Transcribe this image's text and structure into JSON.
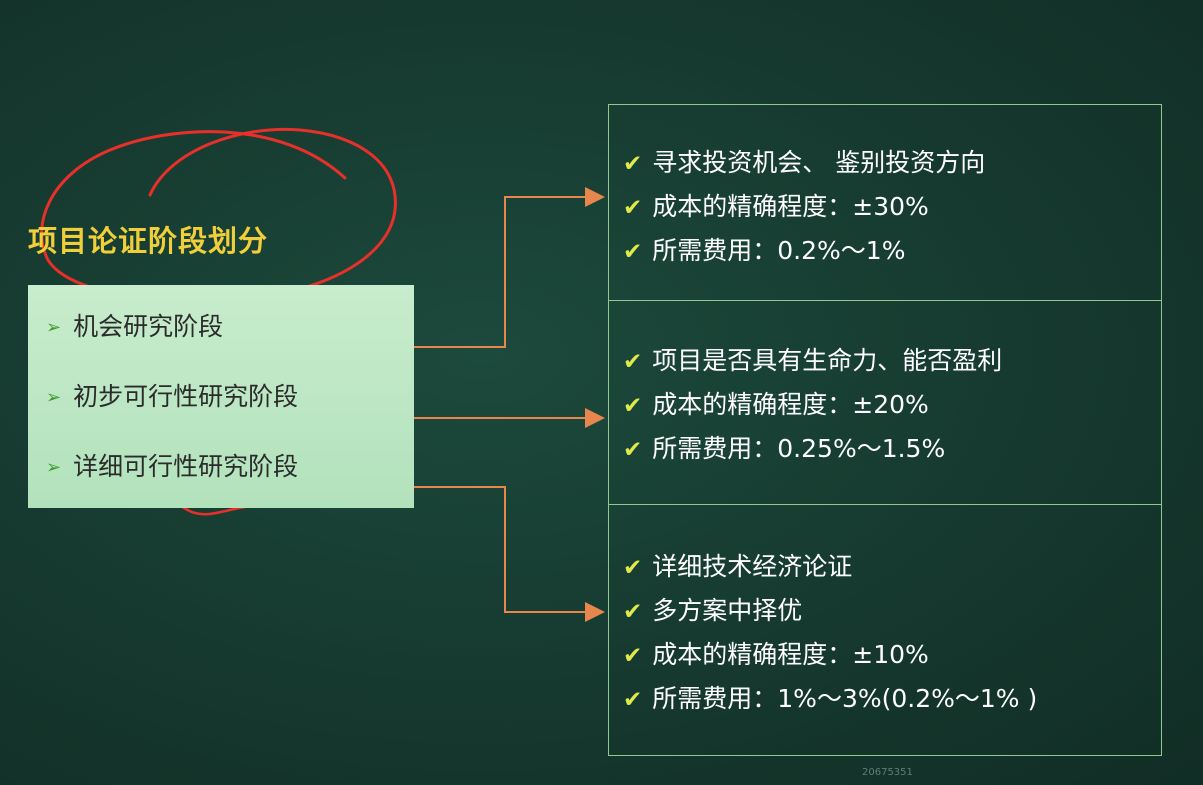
{
  "title": "项目论证阶段划分",
  "stages": [
    {
      "label": "机会研究阶段"
    },
    {
      "label": "初步可行性研究阶段"
    },
    {
      "label": "详细可行性研究阶段"
    }
  ],
  "panels": [
    {
      "items": [
        "寻求投资机会、 鉴别投资方向",
        "成本的精确程度：±30%",
        "所需费用：0.2%～1%"
      ]
    },
    {
      "items": [
        "项目是否具有生命力、能否盈利",
        "成本的精确程度：±20%",
        "所需费用：0.25%～1.5%"
      ]
    },
    {
      "items": [
        "详细技术经济论证",
        "多方案中择优",
        "成本的精确程度：±10%",
        "所需费用：1%～3%(0.2%～1% )"
      ]
    }
  ],
  "watermark": "20675351",
  "colors": {
    "background": "#16392f",
    "title": "#f0cf3a",
    "stage_box": "#c0e8c6",
    "connector": "#e8874d",
    "annotation": "#e8302a",
    "check": "#dfe94a",
    "panel_border": "#8fc98f"
  },
  "icons": {
    "bullet": "triangle-arrow-icon",
    "check": "check-icon"
  }
}
